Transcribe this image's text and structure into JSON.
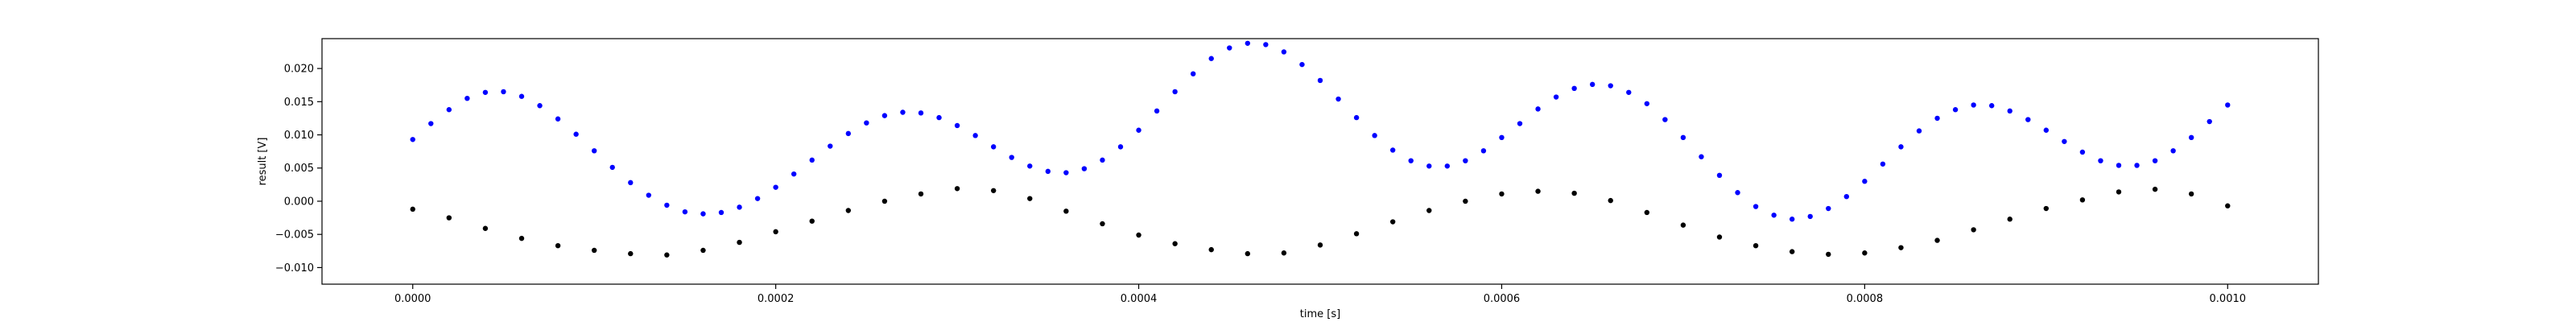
{
  "chart_data": {
    "type": "scatter",
    "title": "",
    "xlabel": "time [s]",
    "ylabel": "result [V]",
    "xlim": [
      -5e-05,
      0.00105
    ],
    "ylim": [
      -0.0125,
      0.0245
    ],
    "x_ticks": [
      0.0,
      0.0002,
      0.0004,
      0.0006,
      0.0008,
      0.001
    ],
    "x_tick_labels": [
      "0.0000",
      "0.0002",
      "0.0004",
      "0.0006",
      "0.0008",
      "0.0010"
    ],
    "y_ticks": [
      -0.01,
      -0.005,
      0.0,
      0.005,
      0.01,
      0.015,
      0.02
    ],
    "y_tick_labels": [
      "−0.010",
      "−0.005",
      "0.000",
      "0.005",
      "0.010",
      "0.015",
      "0.020"
    ],
    "grid": false,
    "legend": "none",
    "series": [
      {
        "color": "#0000ff",
        "marker": "dot",
        "x": [
          0.0,
          1e-05,
          2e-05,
          3e-05,
          4e-05,
          5e-05,
          6e-05,
          7e-05,
          8e-05,
          9e-05,
          0.0001,
          0.00011,
          0.00012,
          0.00013,
          0.00014,
          0.00015,
          0.00016,
          0.00017,
          0.00018,
          0.00019,
          0.0002,
          0.00021,
          0.00022,
          0.00023,
          0.00024,
          0.00025,
          0.00026,
          0.00027,
          0.00028,
          0.00029,
          0.0003,
          0.00031,
          0.00032,
          0.00033,
          0.00034,
          0.00035,
          0.00036,
          0.00037,
          0.00038,
          0.00039,
          0.0004,
          0.00041,
          0.00042,
          0.00043,
          0.00044,
          0.00045,
          0.00046,
          0.00047,
          0.00048,
          0.00049,
          0.0005,
          0.00051,
          0.00052,
          0.00053,
          0.00054,
          0.00055,
          0.00056,
          0.00057,
          0.00058,
          0.00059,
          0.0006,
          0.00061,
          0.00062,
          0.00063,
          0.00064,
          0.00065,
          0.00066,
          0.00067,
          0.00068,
          0.00069,
          0.0007,
          0.00071,
          0.00072,
          0.00073,
          0.00074,
          0.00075,
          0.00076,
          0.00077,
          0.00078,
          0.00079,
          0.0008,
          0.00081,
          0.00082,
          0.00083,
          0.00084,
          0.00085,
          0.00086,
          0.00087,
          0.00088,
          0.00089,
          0.0009,
          0.00091,
          0.00092,
          0.00093,
          0.00094,
          0.00095,
          0.00096,
          0.00097,
          0.00098,
          0.00099,
          0.001
        ],
        "y": [
          0.0093,
          0.0117,
          0.0138,
          0.0155,
          0.0164,
          0.0165,
          0.0158,
          0.0144,
          0.0124,
          0.0101,
          0.0076,
          0.0051,
          0.0028,
          0.0009,
          -0.0006,
          -0.0016,
          -0.0019,
          -0.0017,
          -0.0009,
          0.0004,
          0.0021,
          0.0041,
          0.0062,
          0.0083,
          0.0102,
          0.0118,
          0.0129,
          0.0134,
          0.0133,
          0.0126,
          0.0114,
          0.0099,
          0.0082,
          0.0066,
          0.0053,
          0.0045,
          0.0043,
          0.0049,
          0.0062,
          0.0082,
          0.0107,
          0.0136,
          0.0165,
          0.0192,
          0.0215,
          0.0231,
          0.0238,
          0.0236,
          0.0225,
          0.0206,
          0.0182,
          0.0154,
          0.0126,
          0.0099,
          0.0077,
          0.0061,
          0.0053,
          0.0053,
          0.0061,
          0.0076,
          0.0096,
          0.0117,
          0.0139,
          0.0157,
          0.017,
          0.0176,
          0.0174,
          0.0164,
          0.0147,
          0.0123,
          0.0096,
          0.0067,
          0.0039,
          0.0013,
          -0.0008,
          -0.0021,
          -0.0027,
          -0.0023,
          -0.0011,
          0.0007,
          0.003,
          0.0056,
          0.0082,
          0.0106,
          0.0125,
          0.0138,
          0.0145,
          0.0144,
          0.0136,
          0.0123,
          0.0107,
          0.009,
          0.0074,
          0.0061,
          0.0054,
          0.0054,
          0.0061,
          0.0076,
          0.0096,
          0.012,
          0.0145
        ]
      },
      {
        "color": "#000000",
        "marker": "dot",
        "x": [
          0.0,
          2e-05,
          4e-05,
          6e-05,
          8e-05,
          0.0001,
          0.00012,
          0.00014,
          0.00016,
          0.00018,
          0.0002,
          0.00022,
          0.00024,
          0.00026,
          0.00028,
          0.0003,
          0.00032,
          0.00034,
          0.00036,
          0.00038,
          0.0004,
          0.00042,
          0.00044,
          0.00046,
          0.00048,
          0.0005,
          0.00052,
          0.00054,
          0.00056,
          0.00058,
          0.0006,
          0.00062,
          0.00064,
          0.00066,
          0.00068,
          0.0007,
          0.00072,
          0.00074,
          0.00076,
          0.00078,
          0.0008,
          0.00082,
          0.00084,
          0.00086,
          0.00088,
          0.0009,
          0.00092,
          0.00094,
          0.00096,
          0.00098,
          0.001
        ],
        "y": [
          -0.0012,
          -0.0025,
          -0.0041,
          -0.0056,
          -0.0067,
          -0.0074,
          -0.0079,
          -0.0081,
          -0.0074,
          -0.0062,
          -0.0046,
          -0.003,
          -0.0014,
          0.0,
          0.0011,
          0.0019,
          0.0016,
          0.0004,
          -0.0015,
          -0.0034,
          -0.0051,
          -0.0064,
          -0.0073,
          -0.0079,
          -0.0078,
          -0.0066,
          -0.0049,
          -0.0031,
          -0.0014,
          0.0,
          0.0011,
          0.0015,
          0.0012,
          0.0001,
          -0.0017,
          -0.0036,
          -0.0054,
          -0.0067,
          -0.0076,
          -0.008,
          -0.0078,
          -0.007,
          -0.0059,
          -0.0043,
          -0.0027,
          -0.0011,
          0.0002,
          0.0014,
          0.0018,
          0.0011,
          -0.0007
        ]
      }
    ]
  }
}
